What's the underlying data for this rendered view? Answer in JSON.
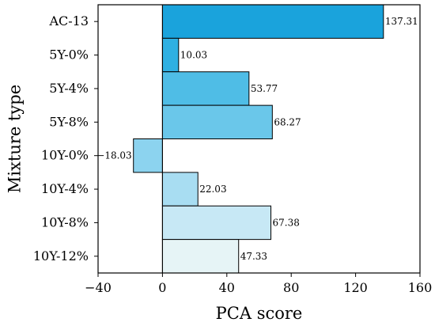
{
  "chart_data": {
    "type": "bar",
    "orientation": "horizontal",
    "title": "",
    "xlabel": "PCA score",
    "ylabel": "Mixture type",
    "xlim": [
      -40,
      160
    ],
    "xticks": [
      -40,
      0,
      40,
      80,
      120,
      160
    ],
    "grid": false,
    "categories": [
      "AC-13",
      "5Y-0%",
      "5Y-4%",
      "5Y-8%",
      "10Y-0%",
      "10Y-4%",
      "10Y-8%",
      "10Y-12%"
    ],
    "values": [
      137.31,
      10.03,
      53.77,
      68.27,
      -18.03,
      22.03,
      67.38,
      47.33
    ],
    "value_labels": [
      "137.31",
      "10.03",
      "53.77",
      "68.27",
      "−18.03",
      "22.03",
      "67.38",
      "47.33"
    ],
    "xtick_labels": [
      "−40",
      "0",
      "40",
      "80",
      "120",
      "160"
    ],
    "colors": [
      "#1aa3dc",
      "#2fb0e2",
      "#4fbde6",
      "#6ac7ea",
      "#8cd3ef",
      "#a8ddf2",
      "#c7e8f5",
      "#e6f4f6"
    ]
  }
}
